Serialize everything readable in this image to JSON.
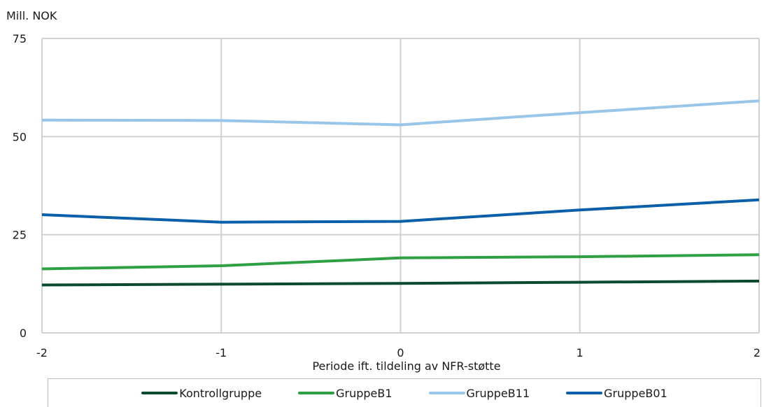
{
  "chart_data": {
    "type": "line",
    "ylabel": "Mill. NOK",
    "xlabel": "Periode ift. tildeling av NFR-støtte",
    "x": [
      -2,
      -1,
      0,
      1,
      2
    ],
    "x_tick_labels": [
      "-2",
      "-1",
      "0",
      "1",
      "2"
    ],
    "ylim": [
      0,
      75
    ],
    "y_ticks": [
      0,
      25,
      50,
      75
    ],
    "y_tick_labels": [
      "0",
      "25",
      "50",
      "75"
    ],
    "grid": true,
    "legend_position": "bottom",
    "series": [
      {
        "name": "Kontrollgruppe",
        "color": "#0b4a2e",
        "values": [
          12.2,
          12.4,
          12.6,
          12.9,
          13.2
        ]
      },
      {
        "name": "GruppeB1",
        "color": "#2ea043",
        "values": [
          16.3,
          17.1,
          19.1,
          19.4,
          19.9
        ]
      },
      {
        "name": "GruppeB11",
        "color": "#98c5e8",
        "values": [
          54.2,
          54.1,
          53.0,
          56.1,
          59.1
        ]
      },
      {
        "name": "GruppeB01",
        "color": "#0a5fa8",
        "values": [
          30.1,
          28.2,
          28.4,
          31.3,
          33.9
        ]
      }
    ]
  }
}
